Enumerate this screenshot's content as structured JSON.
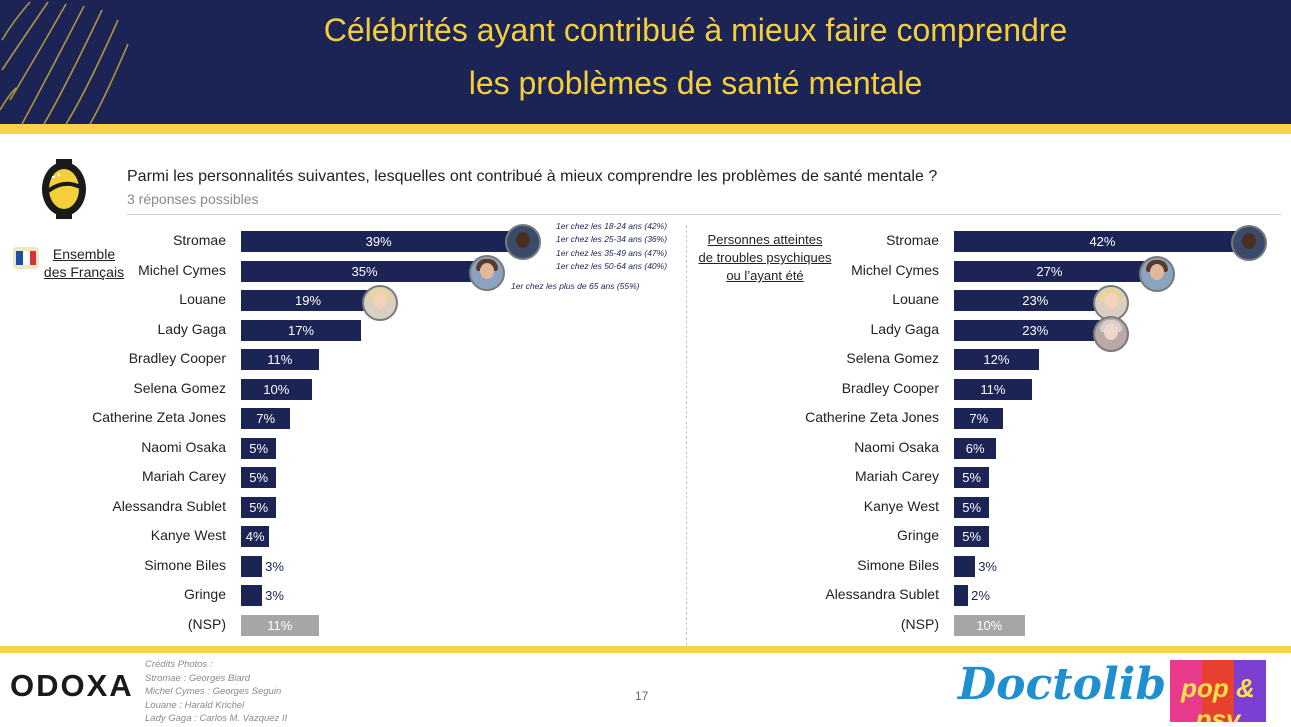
{
  "title": {
    "line1": "Célébrités ayant contribué à mieux faire comprendre",
    "line2": "les problèmes de santé mentale"
  },
  "question": "Parmi les personnalités suivantes, lesquelles ont contribué à mieux comprendre les problèmes de santé mentale ?",
  "subquestion": "3 réponses possibles",
  "annotations": {
    "stromae_lines": [
      "1er chez les 18-24 ans (42%)",
      "1er chez les 25-34 ans (36%)",
      "1er chez les 35-49 ans (47%)",
      "1er chez les 50-64 ans (40%)"
    ],
    "michel_cymes_line": "1er chez les plus de 65 ans (55%)"
  },
  "chart_data": [
    {
      "type": "bar",
      "orientation": "horizontal",
      "group_label": [
        "Ensemble",
        "des Français"
      ],
      "categories": [
        "Stromae",
        "Michel Cymes",
        "Louane",
        "Lady Gaga",
        "Bradley Cooper",
        "Selena Gomez",
        "Catherine Zeta Jones",
        "Naomi Osaka",
        "Mariah Carey",
        "Alessandra Sublet",
        "Kanye West",
        "Simone Biles",
        "Gringe",
        "(NSP)"
      ],
      "values": [
        39,
        35,
        19,
        17,
        11,
        10,
        7,
        5,
        5,
        5,
        4,
        3,
        3,
        11
      ],
      "value_labels": [
        "39%",
        "35%",
        "19%",
        "17%",
        "11%",
        "10%",
        "7%",
        "5%",
        "5%",
        "5%",
        "4%",
        "3%",
        "3%",
        "11%"
      ],
      "unit": "%",
      "colors": {
        "bar": "#1c2456",
        "nsp": "#a6a6a6"
      }
    },
    {
      "type": "bar",
      "orientation": "horizontal",
      "group_label": [
        "Personnes atteintes",
        "de troubles psychiques",
        "ou l’ayant été"
      ],
      "categories": [
        "Stromae",
        "Michel Cymes",
        "Louane",
        "Lady Gaga",
        "Selena Gomez",
        "Bradley Cooper",
        "Catherine Zeta Jones",
        "Naomi Osaka",
        "Mariah Carey",
        "Kanye West",
        "Gringe",
        "Simone Biles",
        "Alessandra Sublet",
        "(NSP)"
      ],
      "values": [
        42,
        27,
        23,
        23,
        12,
        11,
        7,
        6,
        5,
        5,
        5,
        3,
        2,
        10
      ],
      "value_labels": [
        "42%",
        "27%",
        "23%",
        "23%",
        "12%",
        "11%",
        "7%",
        "6%",
        "5%",
        "5%",
        "5%",
        "3%",
        "2%",
        "10%"
      ],
      "unit": "%",
      "colors": {
        "bar": "#1c2456",
        "nsp": "#a6a6a6"
      }
    }
  ],
  "footer": {
    "brand": "ODOXA",
    "credits": [
      "Crédits Photos :",
      "Stromae : Georges Biard",
      "Michel Cymes : Georges Seguin",
      "Louane : Harald Krichel",
      "Lady Gaga : Carlos M. Vazquez II"
    ],
    "page_number": "17",
    "partner1": "Doctolib",
    "partner2": "pop & psy"
  },
  "colors": {
    "navy": "#1c2456",
    "gold": "#f5cf3a",
    "stripe": "#f7d447",
    "gray_bar": "#a6a6a6",
    "doctolib_blue": "#1f8fd0"
  }
}
